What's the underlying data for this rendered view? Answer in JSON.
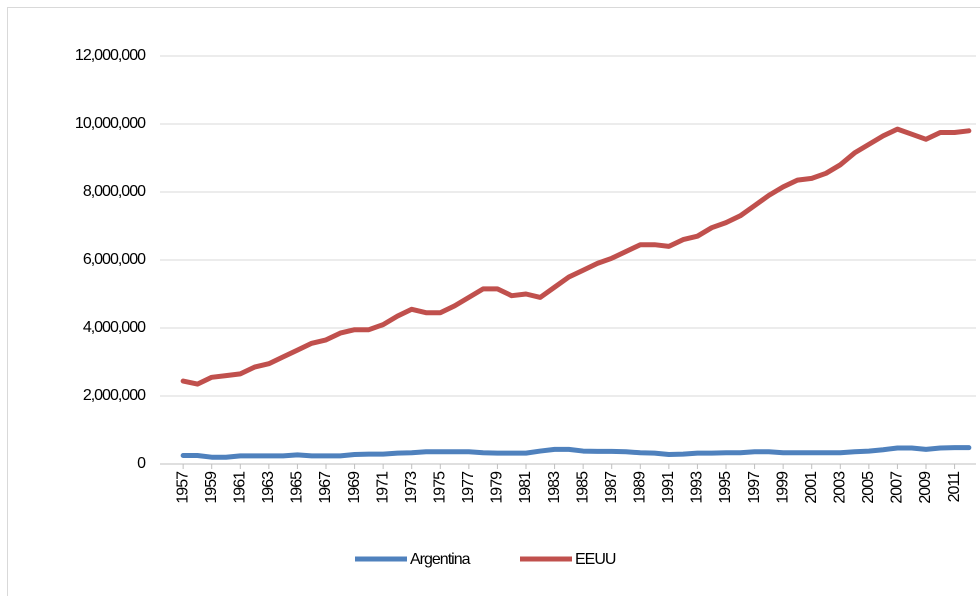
{
  "chart_data": {
    "type": "line",
    "x": [
      1957,
      1958,
      1959,
      1960,
      1961,
      1962,
      1963,
      1964,
      1965,
      1966,
      1967,
      1968,
      1969,
      1970,
      1971,
      1972,
      1973,
      1974,
      1975,
      1976,
      1977,
      1978,
      1979,
      1980,
      1981,
      1982,
      1983,
      1984,
      1985,
      1986,
      1987,
      1988,
      1989,
      1990,
      1991,
      1992,
      1993,
      1994,
      1995,
      1996,
      1997,
      1998,
      1999,
      2000,
      2001,
      2002,
      2003,
      2004,
      2005,
      2006,
      2007,
      2008,
      2009,
      2010,
      2011,
      2012
    ],
    "xlim": [
      1956.5,
      2012.5
    ],
    "xticks": [
      1957,
      1959,
      1961,
      1963,
      1965,
      1967,
      1969,
      1971,
      1973,
      1975,
      1977,
      1979,
      1981,
      1983,
      1985,
      1987,
      1989,
      1991,
      1993,
      1995,
      1997,
      1999,
      2001,
      2003,
      2005,
      2007,
      2009,
      2011
    ],
    "ylim": [
      0,
      12000000
    ],
    "yticks": [
      0,
      {
        "value": 2000000,
        "label": "2,000,000"
      },
      {
        "value": 4000000,
        "label": "4,000,000"
      },
      {
        "value": 6000000,
        "label": "6,000,000"
      },
      {
        "value": 8000000,
        "label": "8,000,000"
      },
      {
        "value": 10000000,
        "label": "10,000,000"
      },
      {
        "value": 12000000,
        "label": "12,000,000"
      }
    ],
    "grid": true,
    "legend": "bottom",
    "series": [
      {
        "name": "Argentina",
        "color": "#4f81bd",
        "values": [
          250000,
          250000,
          200000,
          200000,
          240000,
          240000,
          240000,
          240000,
          270000,
          240000,
          240000,
          240000,
          280000,
          290000,
          290000,
          320000,
          330000,
          360000,
          360000,
          360000,
          360000,
          330000,
          320000,
          320000,
          320000,
          380000,
          430000,
          430000,
          380000,
          370000,
          370000,
          360000,
          330000,
          320000,
          280000,
          290000,
          320000,
          320000,
          330000,
          330000,
          360000,
          360000,
          330000,
          330000,
          330000,
          330000,
          330000,
          360000,
          380000,
          420000,
          470000,
          470000,
          430000,
          470000,
          480000,
          480000
        ]
      },
      {
        "name": "EEUU",
        "color": "#c0504d",
        "values": [
          2440000,
          2350000,
          2550000,
          2600000,
          2650000,
          2850000,
          2950000,
          3150000,
          3350000,
          3550000,
          3650000,
          3850000,
          3950000,
          3950000,
          4100000,
          4350000,
          4550000,
          4450000,
          4450000,
          4650000,
          4900000,
          5150000,
          5150000,
          4950000,
          5000000,
          4900000,
          5200000,
          5500000,
          5700000,
          5900000,
          6050000,
          6250000,
          6450000,
          6450000,
          6400000,
          6600000,
          6700000,
          6950000,
          7100000,
          7300000,
          7600000,
          7900000,
          8150000,
          8350000,
          8400000,
          8550000,
          8800000,
          9150000,
          9400000,
          9650000,
          9850000,
          9700000,
          9550000,
          9750000,
          9750000,
          9800000
        ]
      }
    ]
  }
}
